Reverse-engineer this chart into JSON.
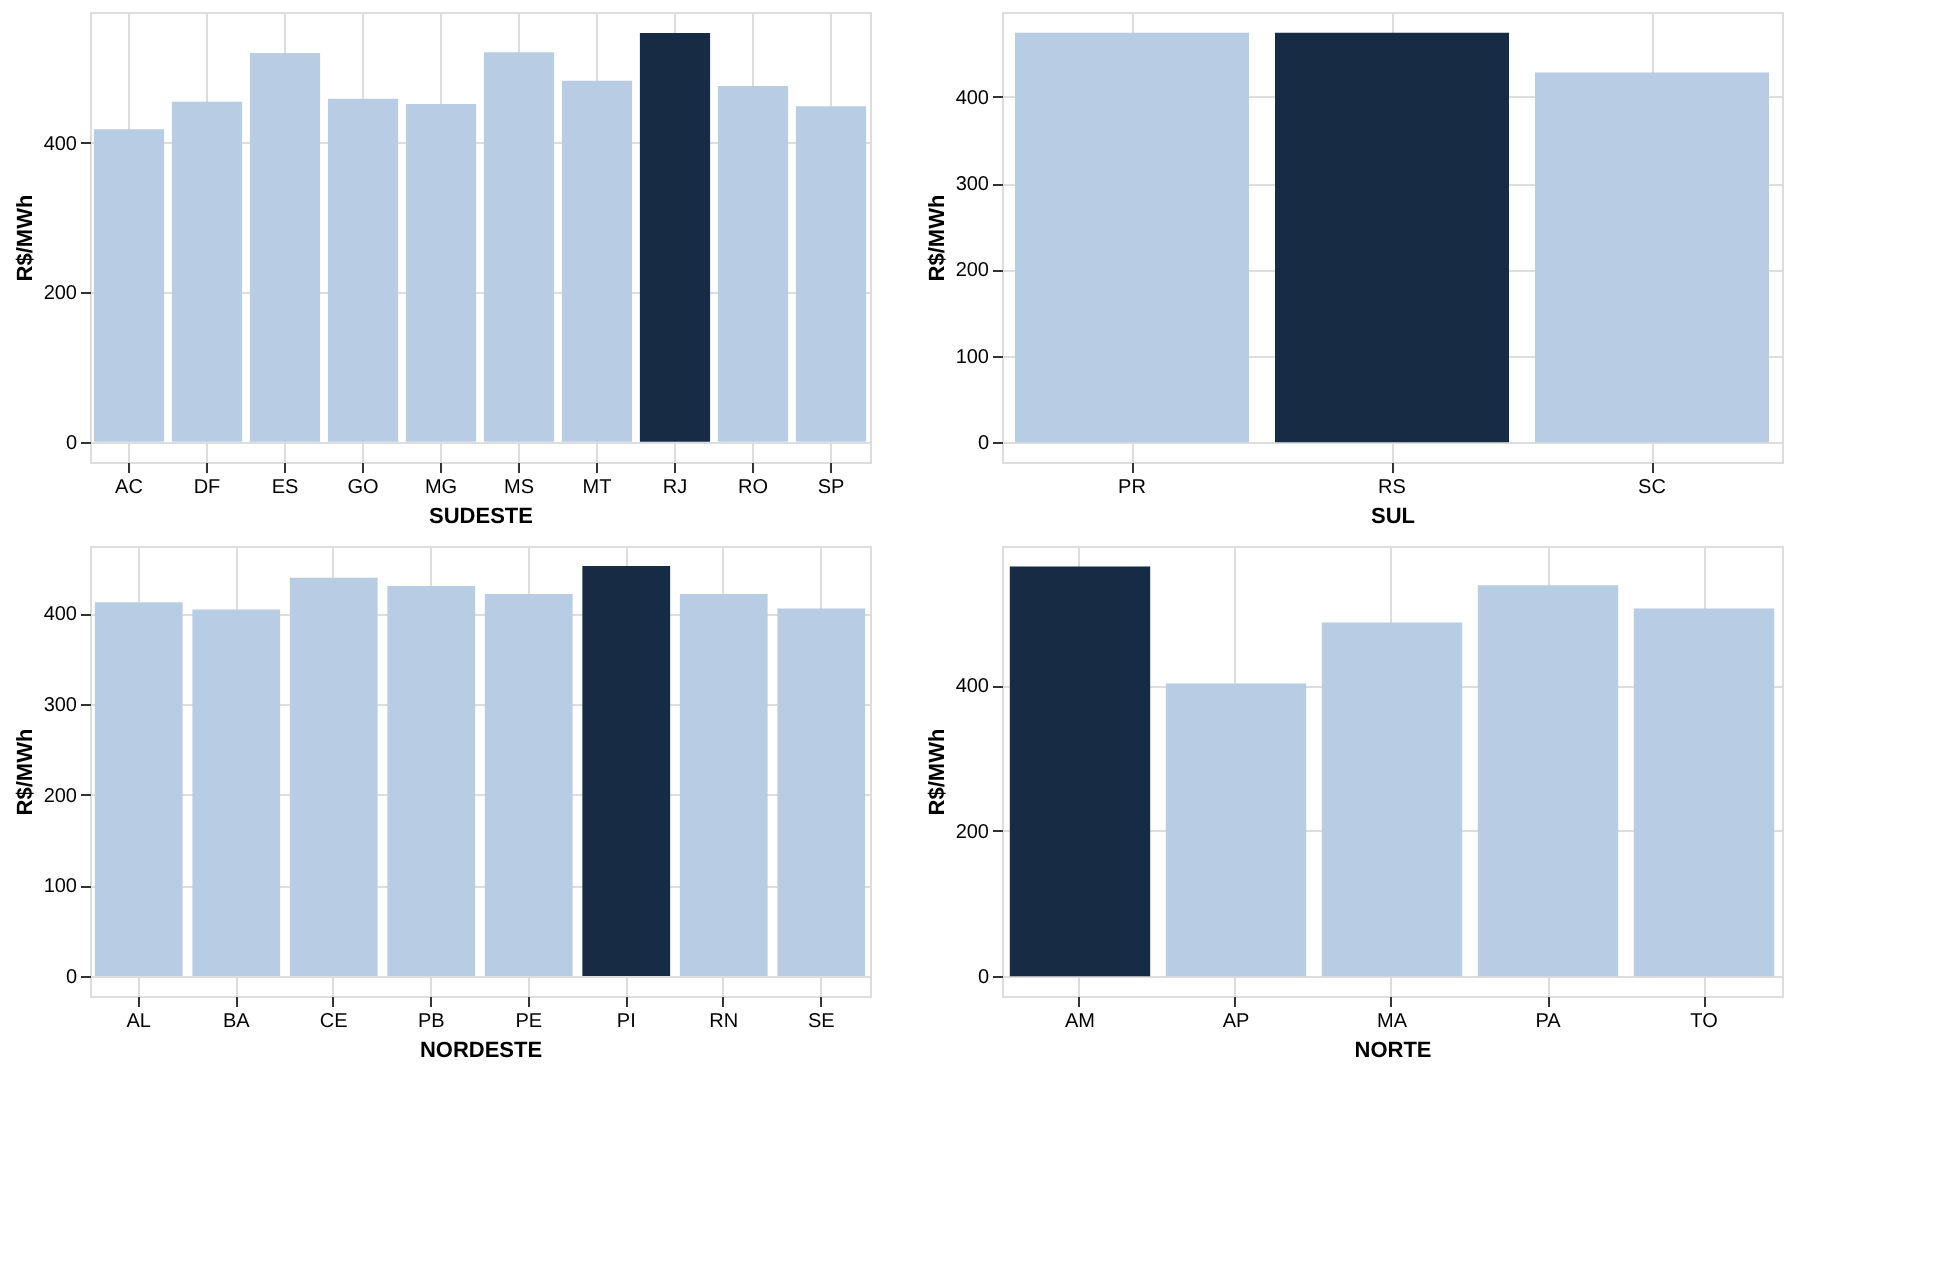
{
  "chart_data": [
    {
      "type": "bar",
      "xlabel": "SUDESTE",
      "ylabel": "R$/MWh",
      "categories": [
        "AC",
        "DF",
        "ES",
        "GO",
        "MG",
        "MS",
        "MT",
        "RJ",
        "RO",
        "SP"
      ],
      "values": [
        418,
        455,
        520,
        459,
        452,
        521,
        483,
        547,
        476,
        449
      ],
      "colors": [
        "#b8cce4",
        "#b8cce4",
        "#b8cce4",
        "#b8cce4",
        "#b8cce4",
        "#b8cce4",
        "#b8cce4",
        "#172b45",
        "#b8cce4",
        "#b8cce4"
      ],
      "ylim": [
        -27,
        575
      ],
      "yticks": [
        0,
        200,
        400
      ],
      "grid": true
    },
    {
      "type": "bar",
      "xlabel": "SUL",
      "ylabel": "R$/MWh",
      "categories": [
        "PR",
        "RS",
        "SC"
      ],
      "values": [
        474,
        474,
        428
      ],
      "colors": [
        "#b8cce4",
        "#172b45",
        "#b8cce4"
      ],
      "ylim": [
        -23,
        498
      ],
      "yticks": [
        0,
        100,
        200,
        300,
        400
      ],
      "grid": true
    },
    {
      "type": "bar",
      "xlabel": "NORDESTE",
      "ylabel": "R$/MWh",
      "categories": [
        "AL",
        "BA",
        "CE",
        "PB",
        "PE",
        "PI",
        "RN",
        "SE"
      ],
      "values": [
        412,
        404,
        439,
        430,
        421,
        452,
        421,
        405
      ],
      "colors": [
        "#b8cce4",
        "#b8cce4",
        "#b8cce4",
        "#b8cce4",
        "#b8cce4",
        "#172b45",
        "#b8cce4",
        "#b8cce4"
      ],
      "ylim": [
        -22,
        474
      ],
      "yticks": [
        0,
        100,
        200,
        300,
        400
      ],
      "grid": true
    },
    {
      "type": "bar",
      "xlabel": "NORTE",
      "ylabel": "R$/MWh",
      "categories": [
        "AM",
        "AP",
        "MA",
        "PA",
        "TO"
      ],
      "values": [
        563,
        402,
        486,
        537,
        505
      ],
      "colors": [
        "#172b45",
        "#b8cce4",
        "#b8cce4",
        "#b8cce4",
        "#b8cce4"
      ],
      "ylim": [
        -27,
        591
      ],
      "yticks": [
        0,
        200,
        400
      ],
      "grid": true
    }
  ]
}
